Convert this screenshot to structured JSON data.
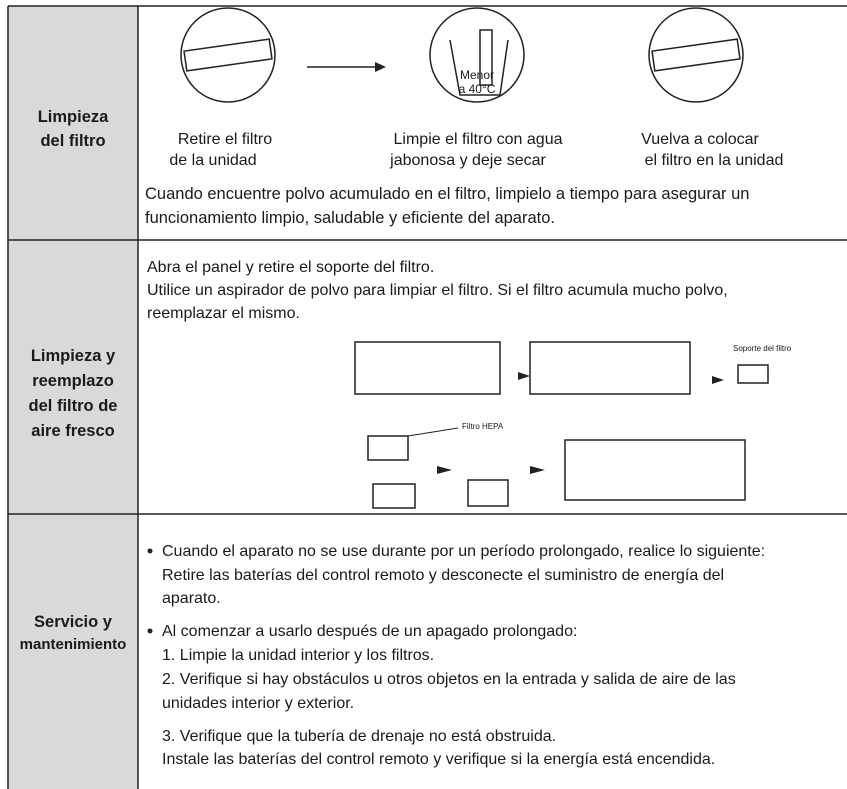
{
  "rows": [
    {
      "label": [
        "Limpieza",
        "del filtro"
      ],
      "steps": [
        {
          "caption": [
            "Retire el filtro",
            "de la unidad"
          ]
        },
        {
          "caption": [
            "Limpie el filtro con agua",
            "jabonosa y deje secar"
          ],
          "inset": [
            "Menor",
            "a 40°C"
          ]
        },
        {
          "caption": [
            "Vuelva a colocar",
            "el filtro en la unidad"
          ]
        }
      ],
      "note": [
        "Cuando encuentre polvo acumulado en el filtro, limpielo a tiempo para asegurar un",
        "funcionamiento limpio, saludable y eficiente del aparato."
      ]
    },
    {
      "label": [
        "Limpieza y",
        "reemplazo",
        "del filtro de",
        "aire fresco"
      ],
      "lines": [
        "Abra el panel y retire el soporte del filtro.",
        "Utilice un aspirador de polvo para limpiar el filtro. Si el filtro acumula mucho polvo,",
        "reemplazar el mismo."
      ],
      "callouts": [
        "Soporte del filtro",
        "Filtro HEPA"
      ]
    },
    {
      "label": [
        "Servicio y",
        "mantenimiento"
      ],
      "bullets": [
        {
          "lines": [
            "Cuando el aparato no se use durante por un período prolongado, realice lo siguiente:",
            "Retire las baterías del control remoto y desconecte el suministro de energía del",
            "aparato."
          ]
        },
        {
          "lines": [
            "Al comenzar a usarlo después de un apagado prolongado:",
            "1. Limpie la unidad interior y los filtros.",
            "2. Verifique si hay obstáculos u otros objetos en la entrada y salida de aire de las",
            "unidades interior y exterior.",
            "3. Verifique que la tubería de drenaje no está obstruida.",
            "Instale las baterías del control remoto y verifique si la energía está encendida."
          ]
        }
      ]
    }
  ]
}
